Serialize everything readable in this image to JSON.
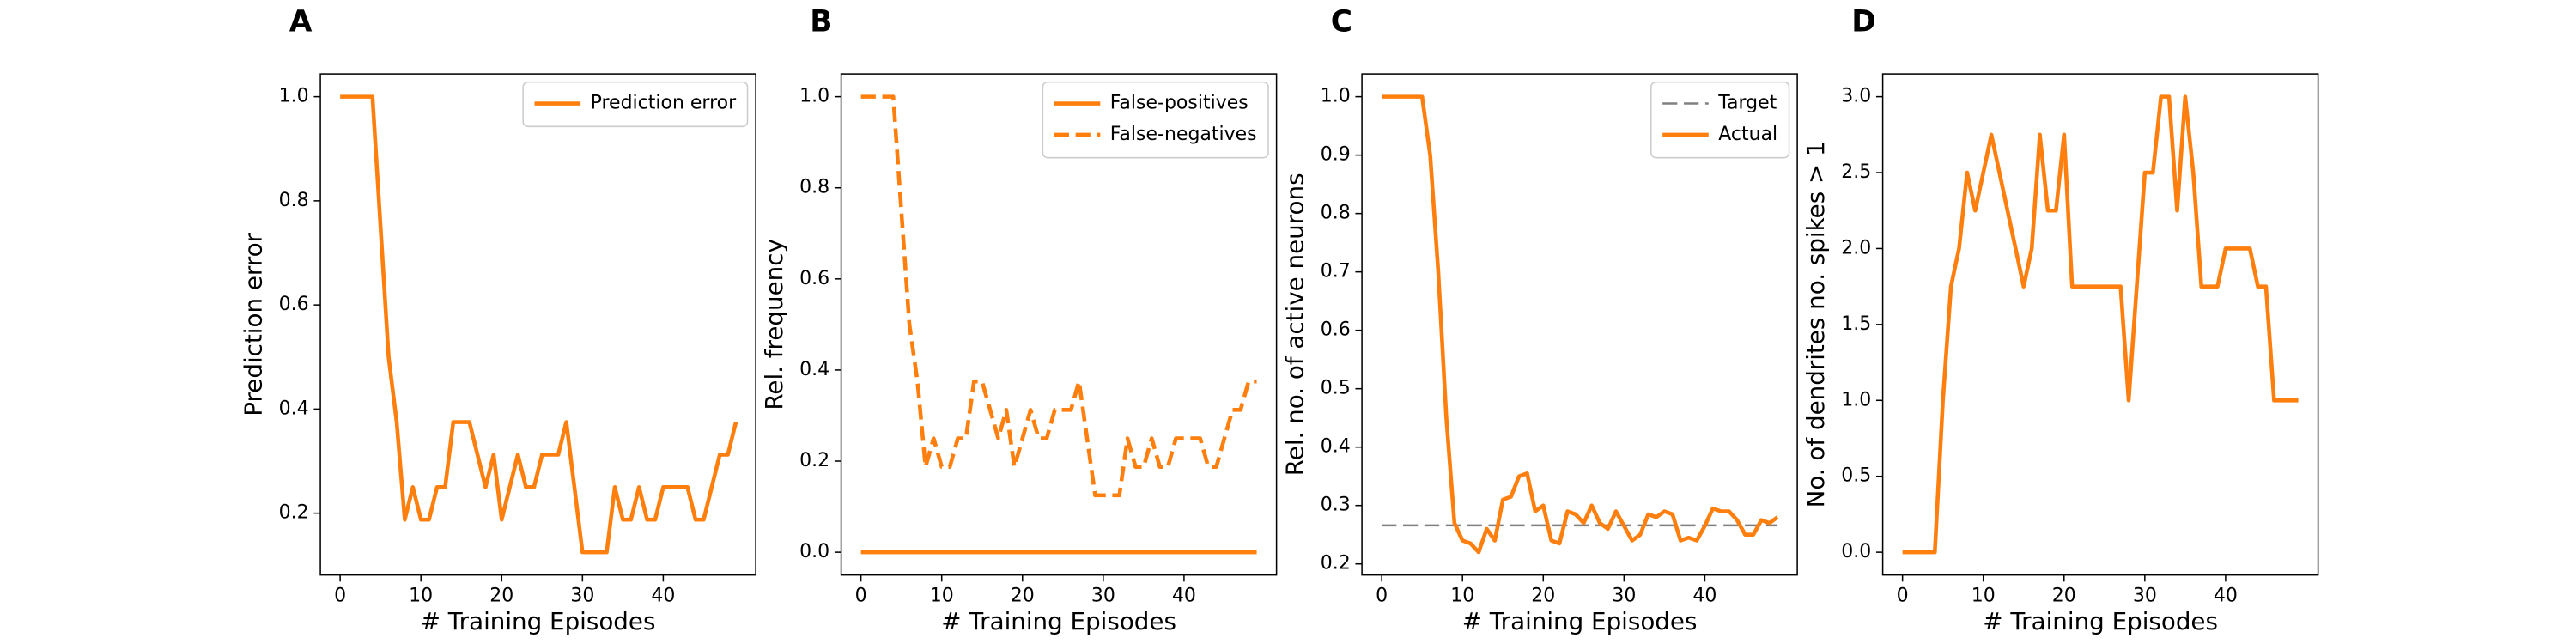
{
  "chart_data": [
    {
      "type": "line",
      "title": "A",
      "xlabel": "# Training Episodes",
      "ylabel": "Prediction error",
      "legend": "upper right",
      "x": [
        0,
        1,
        2,
        3,
        4,
        5,
        6,
        7,
        8,
        9,
        10,
        11,
        12,
        13,
        14,
        15,
        16,
        17,
        18,
        19,
        20,
        21,
        22,
        23,
        24,
        25,
        26,
        27,
        28,
        29,
        30,
        31,
        32,
        33,
        34,
        35,
        36,
        37,
        38,
        39,
        40,
        41,
        42,
        43,
        44,
        45,
        46,
        47,
        48,
        49
      ],
      "series": [
        {
          "name": "Prediction error",
          "color": "#ff7f0e",
          "style": "solid",
          "values": [
            1.0,
            1.0,
            1.0,
            1.0,
            1.0,
            0.75,
            0.5,
            0.375,
            0.1875,
            0.25,
            0.1875,
            0.1875,
            0.25,
            0.25,
            0.375,
            0.375,
            0.375,
            0.3125,
            0.25,
            0.3125,
            0.1875,
            0.25,
            0.3125,
            0.25,
            0.25,
            0.3125,
            0.3125,
            0.3125,
            0.375,
            0.25,
            0.125,
            0.125,
            0.125,
            0.125,
            0.25,
            0.1875,
            0.1875,
            0.25,
            0.1875,
            0.1875,
            0.25,
            0.25,
            0.25,
            0.25,
            0.1875,
            0.1875,
            0.25,
            0.3125,
            0.3125,
            0.375
          ]
        }
      ],
      "xlim": [
        -2.45,
        51.45
      ],
      "xticks": [
        0,
        10,
        20,
        30,
        40
      ],
      "ylim": [
        0.08125,
        1.04375
      ],
      "yticks": [
        0.2,
        0.4,
        0.6,
        0.8,
        {
          "value": 1,
          "label": "1.0"
        }
      ]
    },
    {
      "type": "line",
      "title": "B",
      "xlabel": "# Training Episodes",
      "ylabel": "Rel. frequency",
      "legend": "upper right",
      "x": [
        0,
        1,
        2,
        3,
        4,
        5,
        6,
        7,
        8,
        9,
        10,
        11,
        12,
        13,
        14,
        15,
        16,
        17,
        18,
        19,
        20,
        21,
        22,
        23,
        24,
        25,
        26,
        27,
        28,
        29,
        30,
        31,
        32,
        33,
        34,
        35,
        36,
        37,
        38,
        39,
        40,
        41,
        42,
        43,
        44,
        45,
        46,
        47,
        48,
        49
      ],
      "series": [
        {
          "name": "False-positives",
          "color": "#ff7f0e",
          "style": "solid",
          "values": [
            0,
            0,
            0,
            0,
            0,
            0,
            0,
            0,
            0,
            0,
            0,
            0,
            0,
            0,
            0,
            0,
            0,
            0,
            0,
            0,
            0,
            0,
            0,
            0,
            0,
            0,
            0,
            0,
            0,
            0,
            0,
            0,
            0,
            0,
            0,
            0,
            0,
            0,
            0,
            0,
            0,
            0,
            0,
            0,
            0,
            0,
            0,
            0,
            0,
            0
          ]
        },
        {
          "name": "False-negatives",
          "color": "#ff7f0e",
          "style": "dashed",
          "values": [
            1.0,
            1.0,
            1.0,
            1.0,
            1.0,
            0.75,
            0.5,
            0.375,
            0.1875,
            0.25,
            0.1875,
            0.1875,
            0.25,
            0.25,
            0.375,
            0.375,
            0.3125,
            0.25,
            0.3125,
            0.1875,
            0.25,
            0.3125,
            0.25,
            0.25,
            0.3125,
            0.3125,
            0.3125,
            0.375,
            0.25,
            0.125,
            0.125,
            0.125,
            0.125,
            0.25,
            0.1875,
            0.1875,
            0.25,
            0.1875,
            0.1875,
            0.25,
            0.25,
            0.25,
            0.25,
            0.1875,
            0.1875,
            0.25,
            0.3125,
            0.3125,
            0.375,
            0.375
          ]
        }
      ],
      "xlim": [
        -2.45,
        51.45
      ],
      "xticks": [
        0,
        10,
        20,
        30,
        40
      ],
      "ylim": [
        -0.05,
        1.05
      ],
      "yticks": [
        {
          "value": 0,
          "label": "0.0"
        },
        0.2,
        0.4,
        0.6,
        0.8,
        {
          "value": 1,
          "label": "1.0"
        }
      ]
    },
    {
      "type": "line",
      "title": "C",
      "xlabel": "# Training Episodes",
      "ylabel": "Rel. no. of active neurons",
      "legend": "upper right",
      "x": [
        0,
        1,
        2,
        3,
        4,
        5,
        6,
        7,
        8,
        9,
        10,
        11,
        12,
        13,
        14,
        15,
        16,
        17,
        18,
        19,
        20,
        21,
        22,
        23,
        24,
        25,
        26,
        27,
        28,
        29,
        30,
        31,
        32,
        33,
        34,
        35,
        36,
        37,
        38,
        39,
        40,
        41,
        42,
        43,
        44,
        45,
        46,
        47,
        48,
        49
      ],
      "series": [
        {
          "name": "Target",
          "color": "#808080",
          "style": "dashed",
          "values": [
            0.266,
            0.266,
            0.266,
            0.266,
            0.266,
            0.266,
            0.266,
            0.266,
            0.266,
            0.266,
            0.266,
            0.266,
            0.266,
            0.266,
            0.266,
            0.266,
            0.266,
            0.266,
            0.266,
            0.266,
            0.266,
            0.266,
            0.266,
            0.266,
            0.266,
            0.266,
            0.266,
            0.266,
            0.266,
            0.266,
            0.266,
            0.266,
            0.266,
            0.266,
            0.266,
            0.266,
            0.266,
            0.266,
            0.266,
            0.266,
            0.266,
            0.266,
            0.266,
            0.266,
            0.266,
            0.266,
            0.266,
            0.266,
            0.266,
            0.266
          ]
        },
        {
          "name": "Actual",
          "color": "#ff7f0e",
          "style": "solid",
          "values": [
            1.0,
            1.0,
            1.0,
            1.0,
            1.0,
            1.0,
            0.9,
            0.7,
            0.45,
            0.27,
            0.24,
            0.235,
            0.22,
            0.26,
            0.24,
            0.31,
            0.315,
            0.35,
            0.355,
            0.29,
            0.3,
            0.24,
            0.235,
            0.29,
            0.285,
            0.27,
            0.3,
            0.27,
            0.26,
            0.29,
            0.265,
            0.24,
            0.25,
            0.285,
            0.28,
            0.29,
            0.285,
            0.24,
            0.245,
            0.24,
            0.265,
            0.295,
            0.29,
            0.29,
            0.275,
            0.25,
            0.25,
            0.275,
            0.27,
            0.28
          ]
        }
      ],
      "xlim": [
        -2.45,
        51.45
      ],
      "xticks": [
        0,
        10,
        20,
        30,
        40
      ],
      "ylim": [
        0.181,
        1.039
      ],
      "yticks": [
        0.2,
        0.3,
        0.4,
        0.5,
        0.6,
        0.7,
        0.8,
        0.9,
        {
          "value": 1,
          "label": "1.0"
        }
      ]
    },
    {
      "type": "line",
      "title": "D",
      "xlabel": "# Training Episodes",
      "ylabel": "No. of dendrites no. spikes > 1",
      "x": [
        0,
        1,
        2,
        3,
        4,
        5,
        6,
        7,
        8,
        9,
        10,
        11,
        12,
        13,
        14,
        15,
        16,
        17,
        18,
        19,
        20,
        21,
        22,
        23,
        24,
        25,
        26,
        27,
        28,
        29,
        30,
        31,
        32,
        33,
        34,
        35,
        36,
        37,
        38,
        39,
        40,
        41,
        42,
        43,
        44,
        45,
        46,
        47,
        48,
        49
      ],
      "series": [
        {
          "color": "#ff7f0e",
          "style": "solid",
          "values": [
            0,
            0,
            0,
            0,
            0,
            1.0,
            1.75,
            2.0,
            2.5,
            2.25,
            2.5,
            2.75,
            2.5,
            2.25,
            2.0,
            1.75,
            2.0,
            2.75,
            2.25,
            2.25,
            2.75,
            1.75,
            1.75,
            1.75,
            1.75,
            1.75,
            1.75,
            1.75,
            1.0,
            1.75,
            2.5,
            2.5,
            3.0,
            3.0,
            2.25,
            3.0,
            2.5,
            1.75,
            1.75,
            1.75,
            2.0,
            2.0,
            2.0,
            2.0,
            1.75,
            1.75,
            1.0,
            1.0,
            1.0,
            1.0
          ]
        }
      ],
      "xlim": [
        -2.45,
        51.45
      ],
      "xticks": [
        0,
        10,
        20,
        30,
        40
      ],
      "ylim": [
        -0.15,
        3.15
      ],
      "yticks": [
        {
          "value": 0,
          "label": "0.0"
        },
        0.5,
        {
          "value": 1,
          "label": "1.0"
        },
        1.5,
        {
          "value": 2,
          "label": "2.0"
        },
        2.5,
        {
          "value": 3,
          "label": "3.0"
        }
      ]
    }
  ]
}
